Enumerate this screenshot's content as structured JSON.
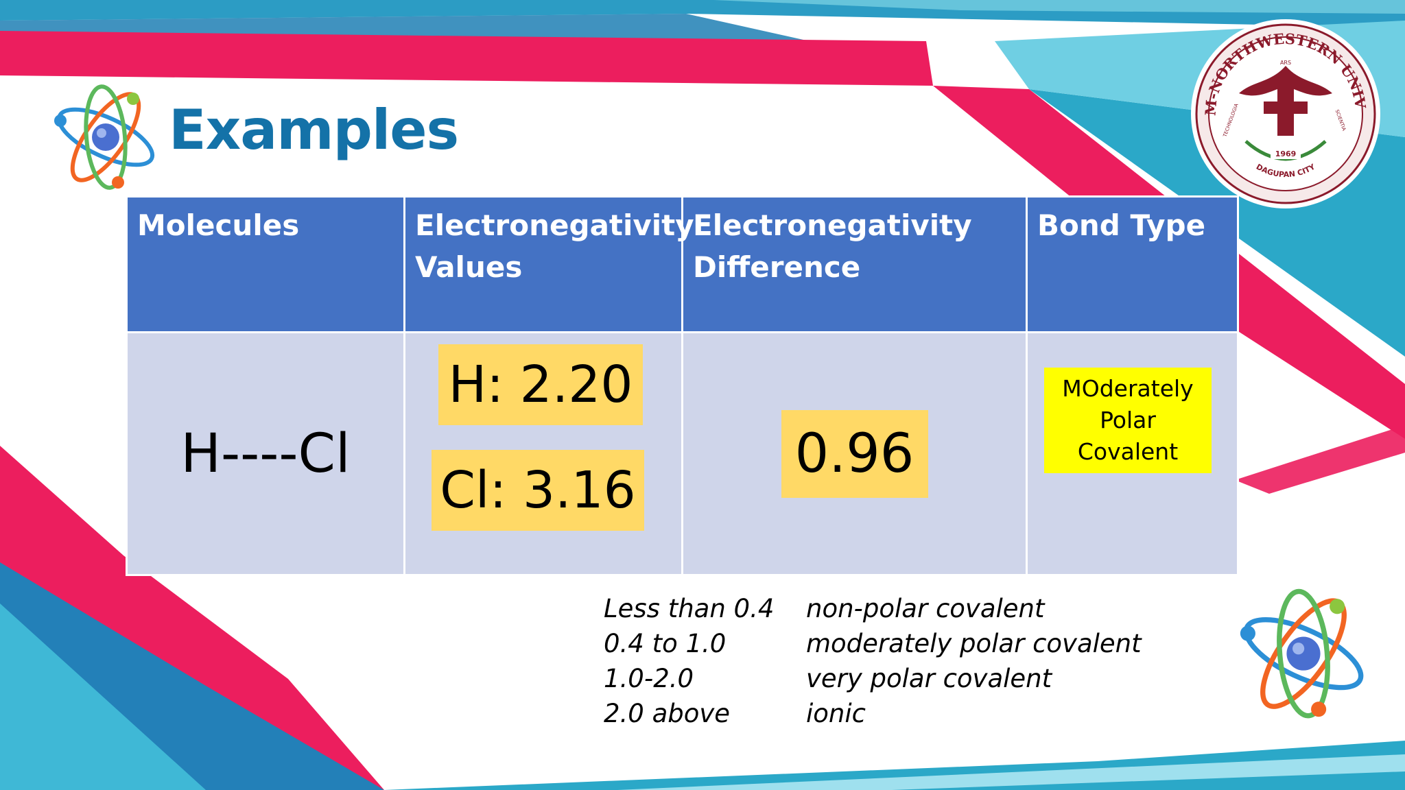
{
  "slide": {
    "title": "Examples",
    "logo": {
      "name": "LYCEUM-NORTHWESTERN UNIVERSITY",
      "motto_top": "ARS",
      "motto_left": "TECHNOLOGIA",
      "motto_right": "SCIENTIA",
      "year": "1969",
      "city": "DAGUPAN CITY"
    }
  },
  "table": {
    "headers": [
      "Molecules",
      "Electronegativity Values",
      "Electronegativity Difference",
      "Bond Type"
    ],
    "row": {
      "molecule": "H----Cl",
      "value_h": "H: 2.20",
      "value_cl": "Cl: 3.16",
      "difference": "0.96",
      "bond_type": "MOderately\nPolar\nCovalent"
    }
  },
  "legend": [
    {
      "range": "Less than 0.4",
      "type": "non-polar covalent"
    },
    {
      "range": "0.4 to 1.0",
      "type": "moderately polar covalent"
    },
    {
      "range": "1.0-2.0",
      "type": "very polar covalent"
    },
    {
      "range": "2.0 above",
      "type": "ionic"
    }
  ],
  "colors": {
    "title": "#1472a8",
    "header_fill": "#4472c4",
    "body_fill": "#cfd5ea",
    "highlight": "#ffd966",
    "bond_highlight": "#ffff00",
    "accent_pink": "#ec1e5e",
    "accent_teal": "#2ba8c8",
    "seal_maroon": "#8b1a2b"
  },
  "icons": [
    "atom-icon",
    "university-seal"
  ]
}
